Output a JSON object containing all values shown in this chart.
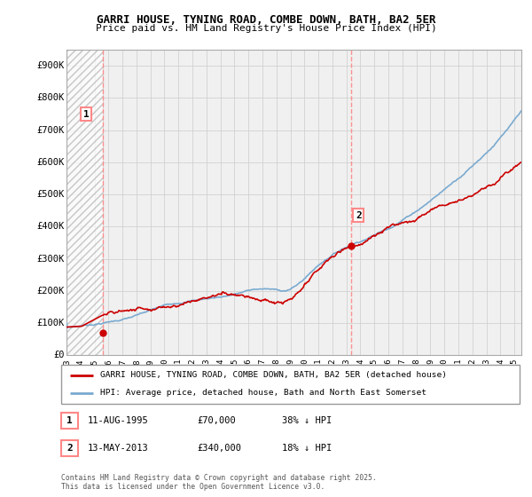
{
  "title": "GARRI HOUSE, TYNING ROAD, COMBE DOWN, BATH, BA2 5ER",
  "subtitle": "Price paid vs. HM Land Registry's House Price Index (HPI)",
  "ylabel_ticks": [
    "£0",
    "£100K",
    "£200K",
    "£300K",
    "£400K",
    "£500K",
    "£600K",
    "£700K",
    "£800K",
    "£900K"
  ],
  "ytick_vals": [
    0,
    100000,
    200000,
    300000,
    400000,
    500000,
    600000,
    700000,
    800000,
    900000
  ],
  "ylim": [
    0,
    950000
  ],
  "xlim_start": 1993,
  "xlim_end": 2025.5,
  "transaction1": {
    "date_num": 1995.61,
    "price": 70000,
    "label": "1",
    "date_str": "11-AUG-1995",
    "hpi_pct": "38% ↓ HPI"
  },
  "transaction2": {
    "date_num": 2013.36,
    "price": 340000,
    "label": "2",
    "date_str": "13-MAY-2013",
    "hpi_pct": "18% ↓ HPI"
  },
  "legend_house_label": "GARRI HOUSE, TYNING ROAD, COMBE DOWN, BATH, BA2 5ER (detached house)",
  "legend_hpi_label": "HPI: Average price, detached house, Bath and North East Somerset",
  "footnote": "Contains HM Land Registry data © Crown copyright and database right 2025.\nThis data is licensed under the Open Government Licence v3.0.",
  "house_color": "#cc0000",
  "hpi_color": "#7aaad0",
  "grid_color": "#cccccc",
  "bg_color": "#ffffff",
  "plot_bg": "#f0f0f0",
  "vline_color": "#ff8888",
  "title_fontsize": 9,
  "subtitle_fontsize": 8
}
